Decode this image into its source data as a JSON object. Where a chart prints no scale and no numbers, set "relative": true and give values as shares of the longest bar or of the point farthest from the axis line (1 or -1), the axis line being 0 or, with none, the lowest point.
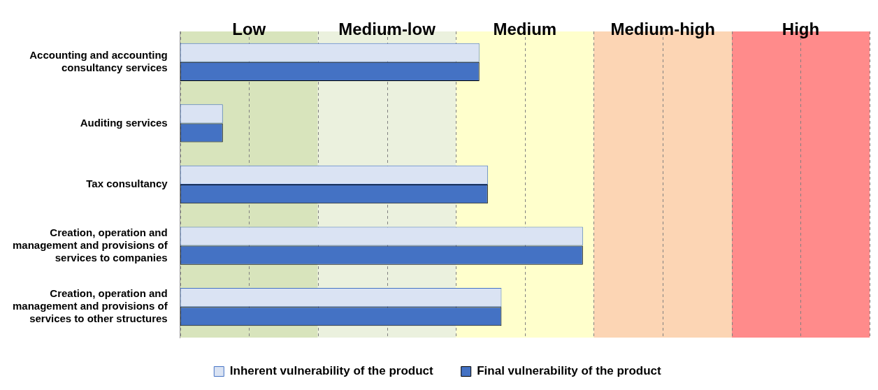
{
  "chart_data": {
    "type": "bar",
    "orientation": "horizontal",
    "relative": true,
    "categories": [
      "Accounting and accounting consultancy services",
      "Auditing services",
      "Tax consultancy",
      "Creation, operation and management and provisions of services to companies",
      "Creation, operation and management and provisions of services to other structures"
    ],
    "series": [
      {
        "name": "Inherent vulnerability of the product",
        "color": "#dae3f3",
        "values": [
          0.743,
          0.106,
          0.764,
          1,
          0.798
        ]
      },
      {
        "name": "Final vulnerability of the product",
        "color": "#4472c4",
        "values": [
          0.743,
          0.106,
          0.764,
          1,
          0.798
        ]
      }
    ],
    "bands": [
      {
        "axis": "x",
        "from": 0,
        "to": 0.342,
        "label": "Low",
        "color": "#d8e4bc"
      },
      {
        "axis": "x",
        "from": 0.342,
        "to": 0.685,
        "label": "Medium-low",
        "color": "#ebf1de"
      },
      {
        "axis": "x",
        "from": 0.685,
        "to": 1.027,
        "label": "Medium",
        "color": "#ffffcc"
      },
      {
        "axis": "x",
        "from": 1.027,
        "to": 1.37,
        "label": "Medium-high",
        "color": "#fcd5b4"
      },
      {
        "axis": "x",
        "from": 1.37,
        "to": 1.712,
        "label": "High",
        "color": "#ff8b8b"
      }
    ],
    "grid": "x",
    "line_style": "dashed",
    "legend": "bottom"
  }
}
